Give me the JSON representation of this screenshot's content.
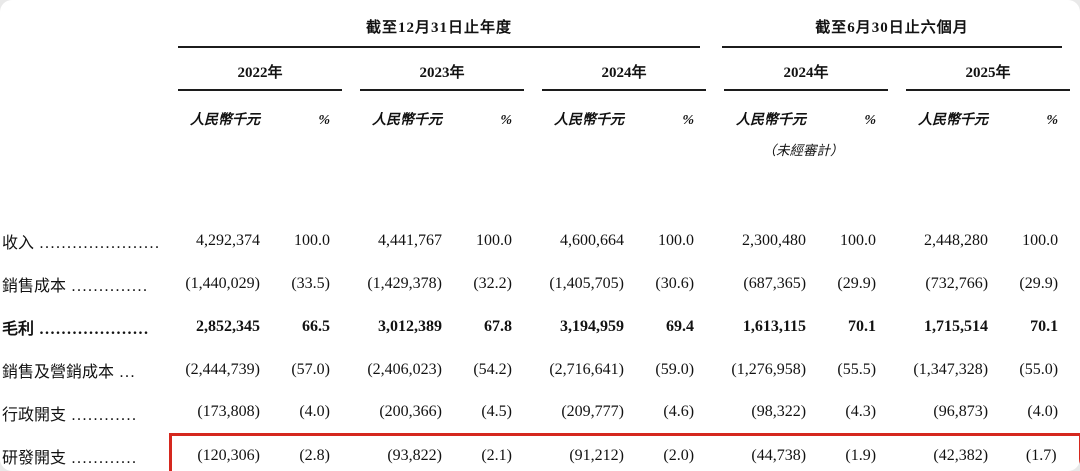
{
  "table": {
    "period_groups": [
      {
        "label": "截至12月31日止年度"
      },
      {
        "label": "截至6月30日止六個月"
      }
    ],
    "year_headers": [
      "2022年",
      "2023年",
      "2024年",
      "2024年",
      "2025年"
    ],
    "unit_label": "人民幣千元",
    "percent_label": "%",
    "unaudited_note": "（未經審計）",
    "highlight_color": "#d5281e",
    "rows": [
      {
        "label": "收入",
        "dots": "......................",
        "style": "normal",
        "highlight": false,
        "values": [
          "4,292,374",
          "100.0",
          "4,441,767",
          "100.0",
          "4,600,664",
          "100.0",
          "2,300,480",
          "100.0",
          "2,448,280",
          "100.0"
        ]
      },
      {
        "label": "銷售成本",
        "dots": "..............",
        "style": "normal",
        "highlight": false,
        "values": [
          "(1,440,029)",
          "(33.5)",
          "(1,429,378)",
          "(32.2)",
          "(1,405,705)",
          "(30.6)",
          "(687,365)",
          "(29.9)",
          "(732,766)",
          "(29.9)"
        ]
      },
      {
        "label": "毛利",
        "dots": "....................",
        "style": "bold",
        "highlight": false,
        "values": [
          "2,852,345",
          "66.5",
          "3,012,389",
          "67.8",
          "3,194,959",
          "69.4",
          "1,613,115",
          "70.1",
          "1,715,514",
          "70.1"
        ]
      },
      {
        "label": "銷售及營銷成本",
        "dots": "...",
        "style": "normal",
        "highlight": false,
        "values": [
          "(2,444,739)",
          "(57.0)",
          "(2,406,023)",
          "(54.2)",
          "(2,716,641)",
          "(59.0)",
          "(1,276,958)",
          "(55.5)",
          "(1,347,328)",
          "(55.0)"
        ]
      },
      {
        "label": "行政開支",
        "dots": "............",
        "style": "normal",
        "highlight": false,
        "values": [
          "(173,808)",
          "(4.0)",
          "(200,366)",
          "(4.5)",
          "(209,777)",
          "(4.6)",
          "(98,322)",
          "(4.3)",
          "(96,873)",
          "(4.0)"
        ]
      },
      {
        "label": "研發開支",
        "dots": "............",
        "style": "normal",
        "highlight": true,
        "values": [
          "(120,306)",
          "(2.8)",
          "(93,822)",
          "(2.1)",
          "(91,212)",
          "(2.0)",
          "(44,738)",
          "(1.9)",
          "(42,382)",
          "(1.7)"
        ]
      }
    ]
  }
}
